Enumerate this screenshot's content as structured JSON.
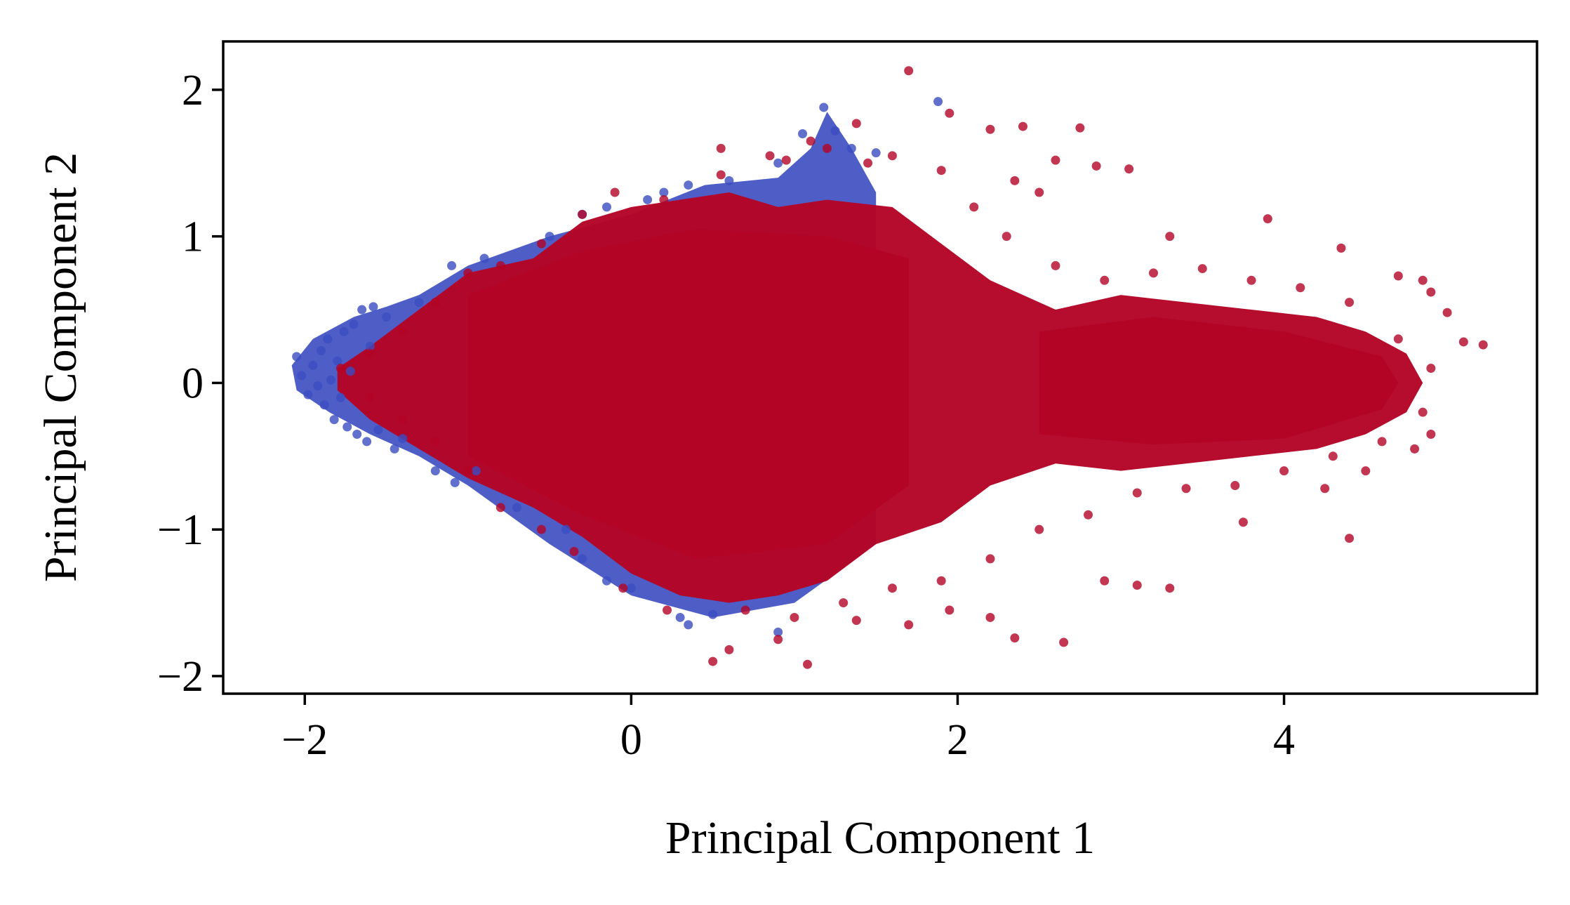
{
  "chart_data": {
    "type": "scatter",
    "title": "",
    "xlabel": "Principal Component 1",
    "ylabel": "Principal Component 2",
    "xlim": [
      -2.5,
      5.55
    ],
    "ylim": [
      -2.12,
      2.33
    ],
    "xticks": [
      -2,
      0,
      2,
      4
    ],
    "xtick_labels": [
      "−2",
      "0",
      "2",
      "4"
    ],
    "yticks": [
      -2,
      -1,
      0,
      1,
      2
    ],
    "ytick_labels": [
      "−2",
      "−1",
      "0",
      "1",
      "2"
    ],
    "grid": false,
    "legend": "none",
    "series": [
      {
        "color": "#3b4cc0",
        "values": [],
        "points": [
          [
            -2.05,
            0.18
          ],
          [
            -2.02,
            0.05
          ],
          [
            -1.98,
            -0.08
          ],
          [
            -1.95,
            0.12
          ],
          [
            -1.92,
            -0.02
          ],
          [
            -1.9,
            0.22
          ],
          [
            -1.88,
            -0.15
          ],
          [
            -1.86,
            0.3
          ],
          [
            -1.84,
            0.02
          ],
          [
            -1.82,
            -0.25
          ],
          [
            -1.8,
            0.15
          ],
          [
            -1.78,
            -0.1
          ],
          [
            -1.76,
            0.35
          ],
          [
            -1.74,
            -0.3
          ],
          [
            -1.72,
            0.08
          ],
          [
            -1.7,
            0.4
          ],
          [
            -1.68,
            -0.35
          ],
          [
            -1.65,
            0.5
          ],
          [
            -1.62,
            -0.4
          ],
          [
            -1.6,
            0.25
          ],
          [
            -1.58,
            0.52
          ],
          [
            -1.5,
            0.45
          ],
          [
            -1.45,
            -0.45
          ],
          [
            -1.4,
            -0.38
          ],
          [
            -1.3,
            0.55
          ],
          [
            -1.2,
            -0.6
          ],
          [
            -1.1,
            0.8
          ],
          [
            -1.08,
            -0.68
          ],
          [
            -0.9,
            0.85
          ],
          [
            -0.7,
            -0.85
          ],
          [
            -0.5,
            1.0
          ],
          [
            -0.4,
            -1.0
          ],
          [
            -0.3,
            1.15
          ],
          [
            -0.3,
            -1.2
          ],
          [
            -0.15,
            1.2
          ],
          [
            -0.15,
            -1.35
          ],
          [
            0.0,
            -1.4
          ],
          [
            0.1,
            1.25
          ],
          [
            0.2,
            1.3
          ],
          [
            0.3,
            -1.6
          ],
          [
            0.35,
            1.35
          ],
          [
            0.35,
            -1.65
          ],
          [
            0.5,
            -1.58
          ],
          [
            0.6,
            1.38
          ],
          [
            0.9,
            1.5
          ],
          [
            0.9,
            -1.7
          ],
          [
            1.05,
            1.7
          ],
          [
            1.18,
            1.88
          ],
          [
            1.25,
            1.72
          ],
          [
            1.35,
            1.6
          ],
          [
            1.5,
            1.57
          ],
          [
            1.88,
            1.92
          ],
          [
            -0.95,
            -0.6
          ],
          [
            -1.55,
            -0.32
          ]
        ]
      },
      {
        "color": "#b40426",
        "values": [],
        "points": [
          [
            1.7,
            2.13
          ],
          [
            1.38,
            1.77
          ],
          [
            1.95,
            1.84
          ],
          [
            2.2,
            1.73
          ],
          [
            2.4,
            1.75
          ],
          [
            2.75,
            1.74
          ],
          [
            3.05,
            1.46
          ],
          [
            2.85,
            1.48
          ],
          [
            2.6,
            1.52
          ],
          [
            1.1,
            1.65
          ],
          [
            0.55,
            1.6
          ],
          [
            1.45,
            1.5
          ],
          [
            0.85,
            1.55
          ],
          [
            2.35,
            1.38
          ],
          [
            2.5,
            1.3
          ],
          [
            3.3,
            1.0
          ],
          [
            3.9,
            1.12
          ],
          [
            4.35,
            0.92
          ],
          [
            4.7,
            0.73
          ],
          [
            4.85,
            0.7
          ],
          [
            4.9,
            0.62
          ],
          [
            5.0,
            0.48
          ],
          [
            5.1,
            0.28
          ],
          [
            5.22,
            0.26
          ],
          [
            4.9,
            -0.35
          ],
          [
            4.8,
            -0.45
          ],
          [
            4.5,
            -0.6
          ],
          [
            4.25,
            -0.72
          ],
          [
            4.4,
            -1.06
          ],
          [
            3.75,
            -0.95
          ],
          [
            3.3,
            -1.4
          ],
          [
            3.1,
            -1.38
          ],
          [
            2.9,
            -1.35
          ],
          [
            2.65,
            -1.77
          ],
          [
            2.35,
            -1.74
          ],
          [
            2.2,
            -1.6
          ],
          [
            1.95,
            -1.55
          ],
          [
            1.7,
            -1.65
          ],
          [
            1.38,
            -1.62
          ],
          [
            1.08,
            -1.92
          ],
          [
            0.9,
            -1.75
          ],
          [
            0.6,
            -1.82
          ],
          [
            0.5,
            -1.9
          ],
          [
            0.22,
            -1.55
          ],
          [
            -0.05,
            -1.4
          ],
          [
            -0.35,
            -1.15
          ],
          [
            -0.55,
            -1.0
          ],
          [
            -0.8,
            -0.85
          ],
          [
            -1.0,
            -0.6
          ],
          [
            -1.2,
            -0.4
          ],
          [
            -1.4,
            -0.25
          ],
          [
            -1.6,
            -0.1
          ],
          [
            -1.78,
            0.1
          ],
          [
            -1.6,
            0.2
          ],
          [
            -1.4,
            0.35
          ],
          [
            -1.2,
            0.55
          ],
          [
            -1.0,
            0.75
          ],
          [
            -0.8,
            0.8
          ],
          [
            -0.55,
            0.95
          ],
          [
            -0.3,
            1.15
          ],
          [
            -0.1,
            1.3
          ],
          [
            0.2,
            1.25
          ],
          [
            0.55,
            1.42
          ],
          [
            0.95,
            1.52
          ],
          [
            1.2,
            1.6
          ],
          [
            1.6,
            1.55
          ],
          [
            1.9,
            1.45
          ],
          [
            2.1,
            1.2
          ],
          [
            2.3,
            1.0
          ],
          [
            2.6,
            0.8
          ],
          [
            2.9,
            0.7
          ],
          [
            3.2,
            0.75
          ],
          [
            3.5,
            0.78
          ],
          [
            3.8,
            0.7
          ],
          [
            4.1,
            0.65
          ],
          [
            4.4,
            0.55
          ],
          [
            4.7,
            0.3
          ],
          [
            4.9,
            0.1
          ],
          [
            4.85,
            -0.2
          ],
          [
            4.6,
            -0.4
          ],
          [
            4.3,
            -0.5
          ],
          [
            4.0,
            -0.6
          ],
          [
            3.7,
            -0.7
          ],
          [
            3.4,
            -0.72
          ],
          [
            3.1,
            -0.75
          ],
          [
            2.8,
            -0.9
          ],
          [
            2.5,
            -1.0
          ],
          [
            2.2,
            -1.2
          ],
          [
            1.9,
            -1.35
          ],
          [
            1.6,
            -1.4
          ],
          [
            1.3,
            -1.5
          ],
          [
            1.0,
            -1.6
          ],
          [
            0.7,
            -1.55
          ]
        ]
      }
    ]
  }
}
